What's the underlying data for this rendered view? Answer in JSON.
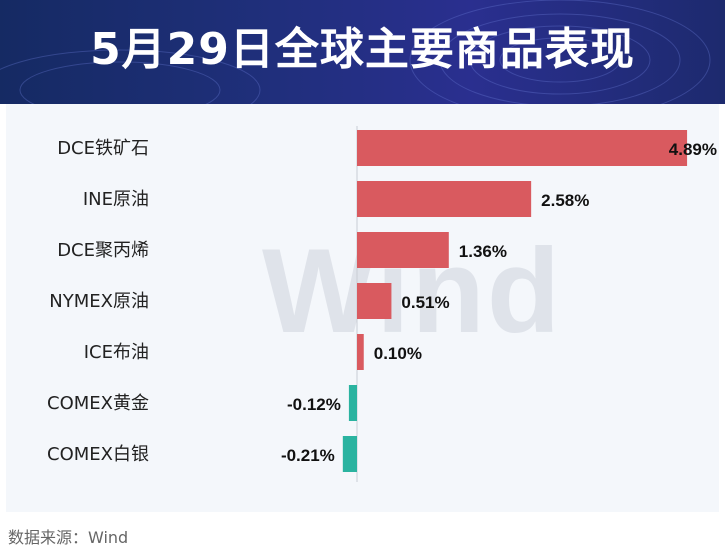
{
  "header": {
    "title": "5月29日全球主要商品表现"
  },
  "watermark": "Wind",
  "source": "数据来源：Wind",
  "colors": {
    "positive": "#d95a5f",
    "negative": "#2ab3a0",
    "banner": "#1f2f7a"
  },
  "chart_data": {
    "type": "bar",
    "orientation": "horizontal",
    "title": "5月29日全球主要商品表现",
    "categories": [
      "DCE铁矿石",
      "INE原油",
      "DCE聚丙烯",
      "NYMEX原油",
      "ICE布油",
      "COMEX黄金",
      "COMEX白银"
    ],
    "values": [
      4.89,
      2.58,
      1.36,
      0.51,
      0.1,
      -0.12,
      -0.21
    ],
    "labels": [
      "4.89%",
      "2.58%",
      "1.36%",
      "0.51%",
      "0.10%",
      "-0.12%",
      "-0.21%"
    ],
    "unit": "%",
    "grid": false,
    "legend": "none"
  }
}
